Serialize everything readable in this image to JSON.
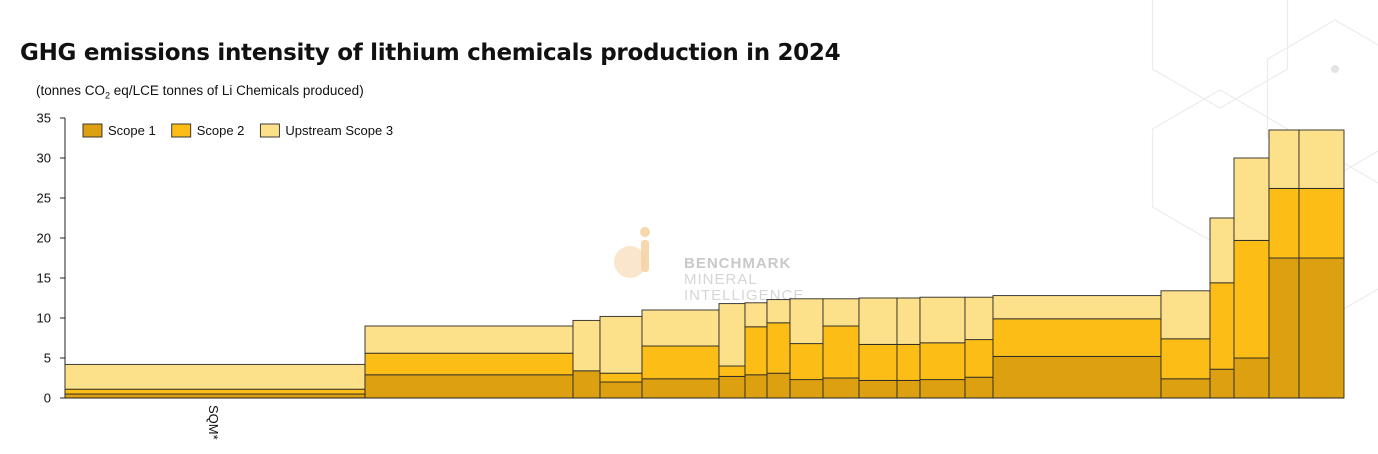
{
  "chart_data": {
    "type": "bar",
    "title": "GHG emissions intensity of lithium chemicals production in 2024",
    "subtitle_pre": "(tonnes CO",
    "subtitle_sub": "2",
    "subtitle_post": " eq/LCE tonnes of Li Chemicals produced)",
    "ylim": [
      0,
      35
    ],
    "yticks": [
      0,
      5,
      10,
      15,
      20,
      25,
      30,
      35
    ],
    "legend_position": "top-left",
    "series": [
      {
        "name": "Scope 1",
        "color": "#dca011"
      },
      {
        "name": "Scope 2",
        "color": "#fbbd16"
      },
      {
        "name": "Upstream Scope 3",
        "color": "#fde08a"
      }
    ],
    "x_label_annotation": "SQM*",
    "bars": [
      {
        "width": 300,
        "scope1": 0.5,
        "scope2": 0.6,
        "scope3": 3.1
      },
      {
        "width": 208,
        "scope1": 2.9,
        "scope2": 2.7,
        "scope3": 3.4
      },
      {
        "width": 27,
        "scope1": 3.4,
        "scope2": 0.0,
        "scope3": 6.3
      },
      {
        "width": 42,
        "scope1": 2.0,
        "scope2": 1.1,
        "scope3": 7.1
      },
      {
        "width": 77,
        "scope1": 2.4,
        "scope2": 4.1,
        "scope3": 4.5
      },
      {
        "width": 26,
        "scope1": 2.7,
        "scope2": 1.3,
        "scope3": 7.8
      },
      {
        "width": 22,
        "scope1": 2.9,
        "scope2": 6.0,
        "scope3": 3.0
      },
      {
        "width": 23,
        "scope1": 3.1,
        "scope2": 6.3,
        "scope3": 2.9
      },
      {
        "width": 33,
        "scope1": 2.3,
        "scope2": 4.5,
        "scope3": 5.6
      },
      {
        "width": 36,
        "scope1": 2.5,
        "scope2": 6.5,
        "scope3": 3.4
      },
      {
        "width": 38,
        "scope1": 2.2,
        "scope2": 4.5,
        "scope3": 5.8
      },
      {
        "width": 23,
        "scope1": 2.2,
        "scope2": 4.5,
        "scope3": 5.8
      },
      {
        "width": 45,
        "scope1": 2.3,
        "scope2": 4.6,
        "scope3": 5.7
      },
      {
        "width": 28,
        "scope1": 2.6,
        "scope2": 4.7,
        "scope3": 5.3
      },
      {
        "width": 168,
        "scope1": 5.2,
        "scope2": 4.7,
        "scope3": 2.9
      },
      {
        "width": 49,
        "scope1": 2.4,
        "scope2": 5.0,
        "scope3": 6.0
      },
      {
        "width": 24,
        "scope1": 3.6,
        "scope2": 10.8,
        "scope3": 8.1
      },
      {
        "width": 35,
        "scope1": 5.0,
        "scope2": 14.7,
        "scope3": 10.3
      },
      {
        "width": 30,
        "scope1": 17.5,
        "scope2": 8.7,
        "scope3": 7.3
      },
      {
        "width": 45,
        "scope1": 17.5,
        "scope2": 8.7,
        "scope3": 7.3
      }
    ]
  },
  "watermark": {
    "line1": "BENCHMARK",
    "line2": "MINERAL",
    "line3": "INTELLIGENCE"
  }
}
